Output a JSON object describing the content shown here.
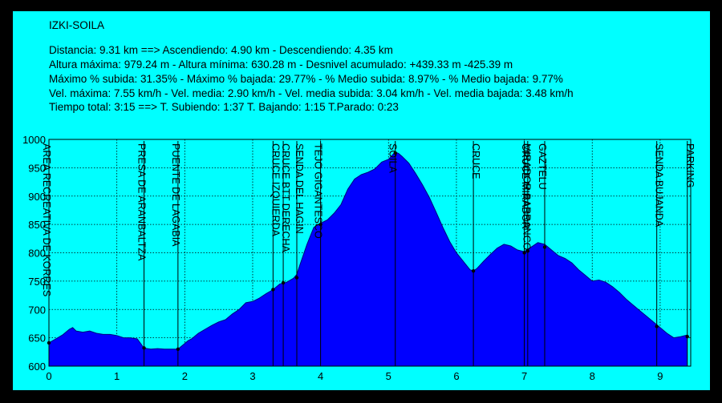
{
  "header": {
    "title": "IZKI-SOILA",
    "lines": [
      "Distancia: 9.31 km   ==>   Ascendiendo: 4.90 km - Descendiendo: 4.35 km",
      "Altura máxima: 979.24 m - Altura mínima: 630.28 m - Desnivel acumulado: +439.33 m  -425.39 m",
      "Máximo % subida: 31.35%  - Máximo % bajada: 29.77%  - % Medio subida: 8.97%  - % Medio bajada: 9.77%",
      "Vel. máxima: 7.55 km/h - Vel. media: 2.90 km/h - Vel. media subida: 3.04 km/h - Vel. media bajada: 3.48 km/h",
      "Tiempo total: 3:15   ==>   T. Subiendo: 1:37  T. Bajando: 1:15  T.Parado: 0:23"
    ]
  },
  "chart_data": {
    "type": "area",
    "title": "",
    "xlabel": "",
    "ylabel": "",
    "xlim": [
      0,
      9.45
    ],
    "ylim": [
      600,
      1000
    ],
    "x_ticks": [
      0,
      1,
      2,
      3,
      4,
      5,
      6,
      7,
      8,
      9
    ],
    "y_ticks": [
      600,
      650,
      700,
      750,
      800,
      850,
      900,
      950,
      1000
    ],
    "grid": true,
    "colors": {
      "fill": "#0000ff",
      "background": "#00ffff",
      "line": "#000000",
      "marker": "#000000"
    },
    "profile": {
      "x": [
        0,
        0.1,
        0.2,
        0.3,
        0.35,
        0.4,
        0.5,
        0.6,
        0.7,
        0.8,
        0.9,
        1.0,
        1.1,
        1.2,
        1.3,
        1.4,
        1.45,
        1.5,
        1.6,
        1.7,
        1.8,
        1.9,
        2.0,
        2.05,
        2.1,
        2.2,
        2.3,
        2.4,
        2.5,
        2.6,
        2.7,
        2.8,
        2.9,
        3.0,
        3.1,
        3.2,
        3.3,
        3.4,
        3.5,
        3.6,
        3.65,
        3.7,
        3.8,
        3.9,
        4.0,
        4.1,
        4.2,
        4.3,
        4.4,
        4.5,
        4.6,
        4.7,
        4.8,
        4.9,
        5.0,
        5.1,
        5.15,
        5.2,
        5.3,
        5.4,
        5.5,
        5.6,
        5.7,
        5.8,
        5.9,
        6.0,
        6.1,
        6.2,
        6.25,
        6.3,
        6.4,
        6.5,
        6.6,
        6.7,
        6.8,
        6.9,
        7.0,
        7.1,
        7.2,
        7.3,
        7.4,
        7.5,
        7.6,
        7.7,
        7.8,
        7.9,
        8.0,
        8.1,
        8.2,
        8.3,
        8.4,
        8.5,
        8.6,
        8.7,
        8.8,
        8.9,
        9.0,
        9.1,
        9.2,
        9.3,
        9.4
      ],
      "y": [
        641,
        648,
        655,
        665,
        668,
        662,
        660,
        662,
        658,
        656,
        656,
        654,
        650,
        650,
        648,
        632,
        631,
        630,
        631,
        630,
        630,
        630,
        640,
        645,
        648,
        658,
        665,
        672,
        678,
        682,
        692,
        700,
        712,
        714,
        720,
        728,
        735,
        745,
        748,
        755,
        762,
        780,
        815,
        845,
        852,
        858,
        870,
        885,
        912,
        930,
        938,
        942,
        948,
        960,
        965,
        978,
        975,
        970,
        958,
        940,
        920,
        898,
        872,
        845,
        820,
        800,
        785,
        770,
        768,
        772,
        785,
        797,
        808,
        815,
        812,
        805,
        802,
        810,
        818,
        815,
        805,
        795,
        790,
        782,
        770,
        760,
        750,
        752,
        748,
        740,
        730,
        718,
        708,
        698,
        688,
        678,
        668,
        658,
        650,
        652,
        655
      ]
    },
    "waypoints": [
      {
        "label": "AREA RECREATIVA DE KORRES",
        "x": 0.0,
        "y": 641,
        "side": "right"
      },
      {
        "label": "PRESA DE ARANBALTZA",
        "x": 1.4,
        "y": 632,
        "side": "right"
      },
      {
        "label": "PUENTE DE LAGABIA",
        "x": 1.9,
        "y": 630,
        "side": "right"
      },
      {
        "label": "CRUCE IZQUIERDA",
        "x": 3.3,
        "y": 735,
        "side": "left"
      },
      {
        "label": "CRUCE BTT DERECHA",
        "x": 3.45,
        "y": 747,
        "side": "left"
      },
      {
        "label": "SENDA DEL HAGIN",
        "x": 3.65,
        "y": 756,
        "side": "left"
      },
      {
        "label": "TEJO GIGANTESCO",
        "x": 4.0,
        "y": 850,
        "side": "right"
      },
      {
        "label": "SOILA",
        "x": 5.1,
        "y": 976,
        "side": "right"
      },
      {
        "label": "CRUCE",
        "x": 6.25,
        "y": 768,
        "side": "left"
      },
      {
        "label": "MIRADOR BARRANCO",
        "x": 7.0,
        "y": 800,
        "side": "left"
      },
      {
        "label": "CRUCE MIRADOR",
        "x": 7.05,
        "y": 803,
        "side": "right"
      },
      {
        "label": "GAZTELU",
        "x": 7.3,
        "y": 810,
        "side": "right"
      },
      {
        "label": "SENDA BUJANDA",
        "x": 8.95,
        "y": 670,
        "side": "left"
      },
      {
        "label": "PARKING",
        "x": 9.4,
        "y": 652,
        "side": "left"
      }
    ]
  }
}
